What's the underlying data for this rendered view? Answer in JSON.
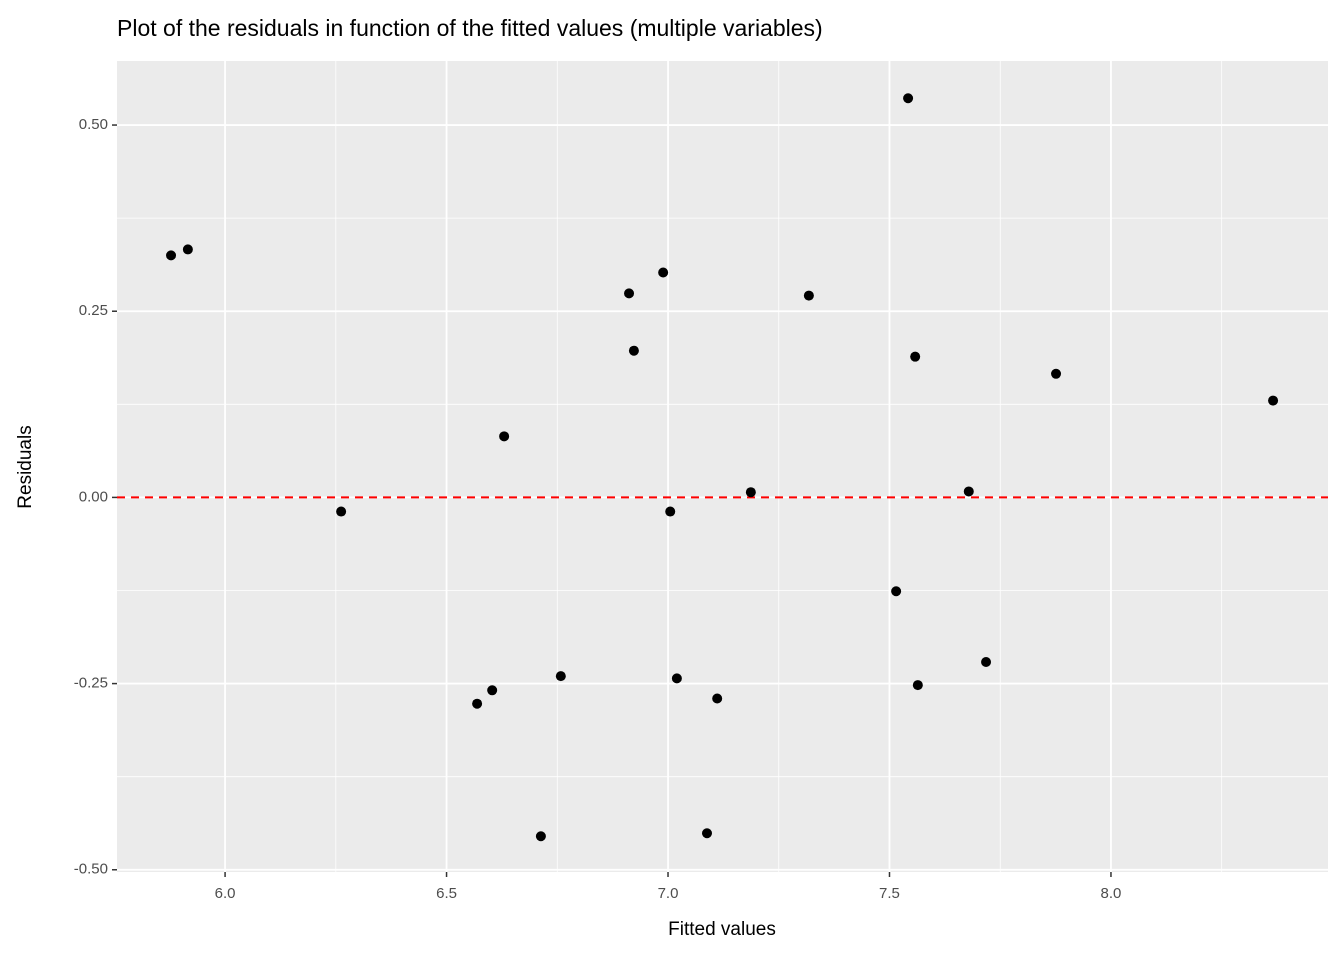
{
  "chart_data": {
    "type": "scatter",
    "title": "Plot of the residuals in function of the fitted values (multiple variables)",
    "x_label": "Fitted values",
    "y_label": "Residuals",
    "x": [
      5.878,
      5.916,
      6.262,
      6.569,
      6.603,
      6.63,
      6.713,
      6.758,
      6.912,
      6.923,
      6.989,
      7.005,
      7.02,
      7.088,
      7.111,
      7.187,
      7.318,
      7.515,
      7.542,
      7.558,
      7.564,
      7.679,
      7.718,
      7.876,
      8.366
    ],
    "values": [
      0.325,
      0.333,
      -0.019,
      -0.277,
      -0.259,
      0.082,
      -0.455,
      -0.24,
      0.274,
      0.197,
      0.302,
      -0.019,
      -0.243,
      -0.451,
      -0.27,
      0.007,
      0.271,
      -0.126,
      0.536,
      0.189,
      -0.252,
      0.008,
      -0.221,
      0.166,
      0.13
    ],
    "color": "#000000",
    "xlim": [
      5.756,
      8.49
    ],
    "ylim": [
      -0.503,
      0.586
    ],
    "xticks": [
      {
        "value": 6,
        "label": "6.0"
      },
      {
        "value": 6.5,
        "label": "6.5"
      },
      {
        "value": 7,
        "label": "7.0"
      },
      {
        "value": 7.5,
        "label": "7.5"
      },
      {
        "value": 8,
        "label": "8.0"
      }
    ],
    "yticks": [
      {
        "value": -0.5,
        "label": "-0.50"
      },
      {
        "value": -0.25,
        "label": "-0.25"
      },
      {
        "value": 0,
        "label": "0.00"
      },
      {
        "value": 0.25,
        "label": "0.25"
      },
      {
        "value": 0.5,
        "label": "0.50"
      }
    ],
    "grid": true,
    "hline": {
      "y": 0,
      "color": "#ff0000"
    }
  }
}
